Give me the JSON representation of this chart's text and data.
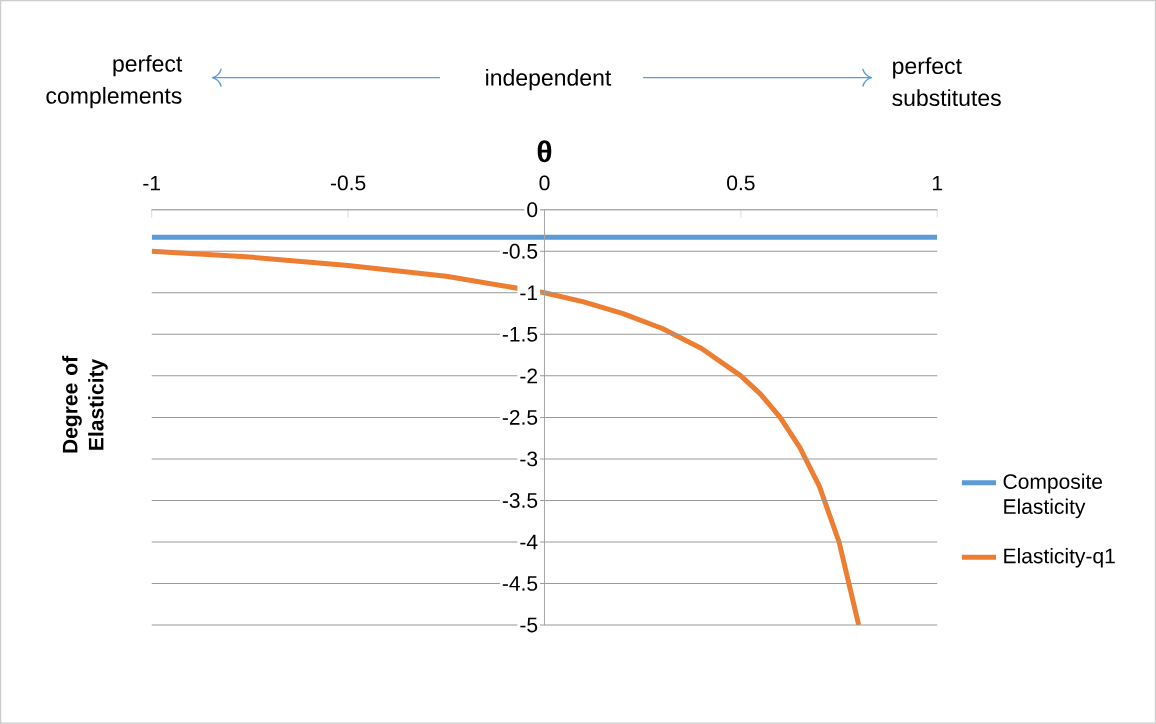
{
  "chart_data": {
    "type": "line",
    "xlabel": "θ",
    "ylabel": "Degree of Elasticity",
    "annotations": [
      "perfect complements",
      "independent",
      "perfect substitutes"
    ],
    "series": [
      {
        "name": "Composite Elasticity",
        "color": "#5b9bd5",
        "x": [
          -1,
          1
        ],
        "values": [
          -0.33,
          -0.33
        ]
      },
      {
        "name": "Elasticity-q1",
        "color": "#ed7d31",
        "x": [
          -1,
          -0.75,
          -0.5,
          -0.25,
          0,
          0.1,
          0.2,
          0.3,
          0.4,
          0.5,
          0.55,
          0.6,
          0.65,
          0.7,
          0.75,
          0.8
        ],
        "values": [
          -0.5,
          -0.57,
          -0.67,
          -0.8,
          -1,
          -1.11,
          -1.25,
          -1.43,
          -1.67,
          -2,
          -2.22,
          -2.5,
          -2.86,
          -3.33,
          -4,
          -5
        ]
      }
    ],
    "xlim": [
      -1,
      1
    ],
    "ylim": [
      -5,
      0
    ],
    "xticks": [
      -1,
      -0.5,
      0,
      0.5,
      1
    ],
    "yticks": [
      0,
      -0.5,
      -1,
      -1.5,
      -2,
      -2.5,
      -3,
      -3.5,
      -4,
      -4.5,
      -5
    ],
    "grid": "y",
    "legend": "right"
  }
}
